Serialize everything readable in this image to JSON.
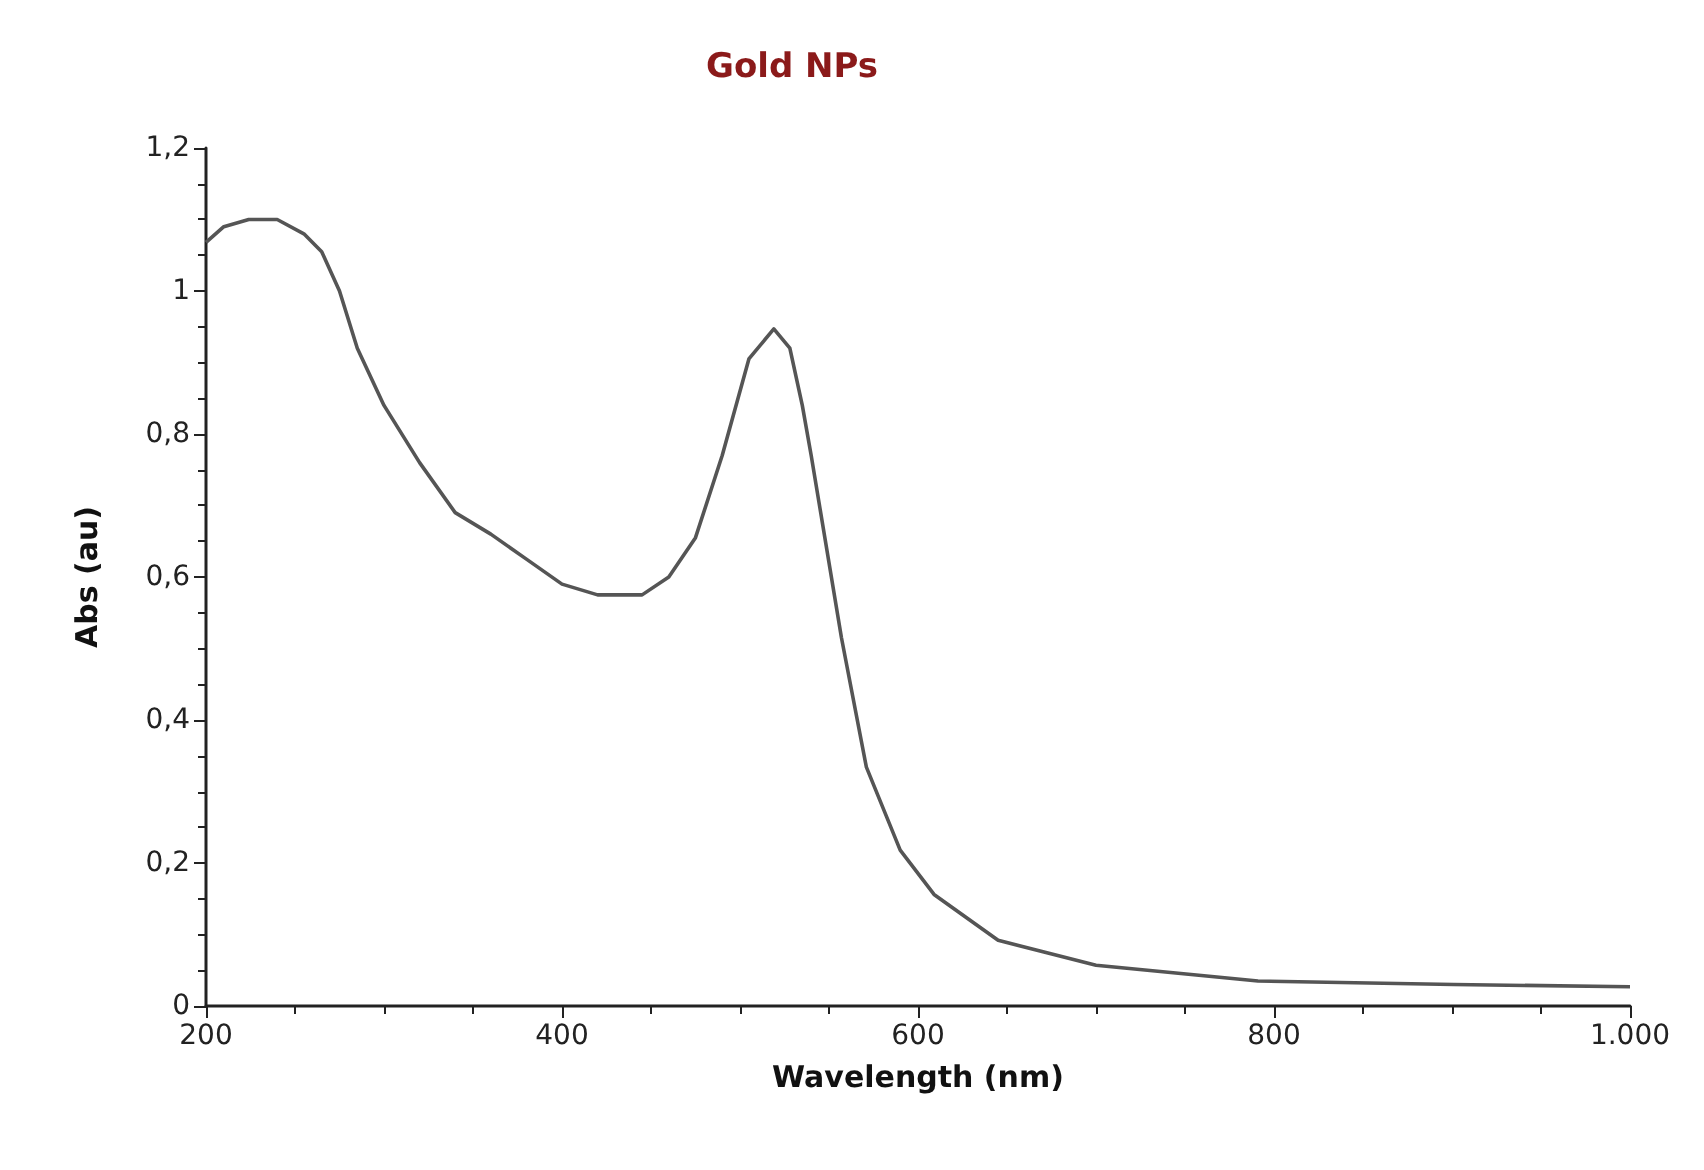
{
  "chart_data": {
    "type": "line",
    "title": "Gold NPs",
    "xlabel": "Wavelength (nm)",
    "ylabel": "Abs (au)",
    "xlim": [
      200,
      1000
    ],
    "ylim": [
      0,
      1.2
    ],
    "xticks": [
      200,
      400,
      600,
      800,
      {
        "value": 1000,
        "label": "1.000"
      }
    ],
    "yticks": [
      0,
      {
        "value": 0.2,
        "label": "0,2"
      },
      {
        "value": 0.4,
        "label": "0,4"
      },
      {
        "value": 0.6,
        "label": "0,6"
      },
      {
        "value": 0.8,
        "label": "0,8"
      },
      1,
      {
        "value": 1.2,
        "label": "1,2"
      }
    ],
    "grid": false,
    "marker": "none",
    "line_style": "solid",
    "series": [
      {
        "color": "#555555",
        "x": [
          200,
          210,
          224,
          240,
          255,
          265,
          275,
          285,
          300,
          320,
          340,
          360,
          380,
          400,
          420,
          445,
          460,
          475,
          490,
          505,
          519,
          528,
          535,
          540,
          557,
          571,
          590,
          609,
          645,
          700,
          791,
          901,
          1000
        ],
        "values": [
          1.068,
          1.09,
          1.1,
          1.1,
          1.08,
          1.055,
          1.0,
          0.92,
          0.84,
          0.76,
          0.69,
          0.66,
          0.625,
          0.59,
          0.575,
          0.575,
          0.6,
          0.655,
          0.77,
          0.905,
          0.947,
          0.92,
          0.84,
          0.77,
          0.515,
          0.334,
          0.218,
          0.156,
          0.092,
          0.057,
          0.035,
          0.03,
          0.027
        ]
      }
    ]
  }
}
